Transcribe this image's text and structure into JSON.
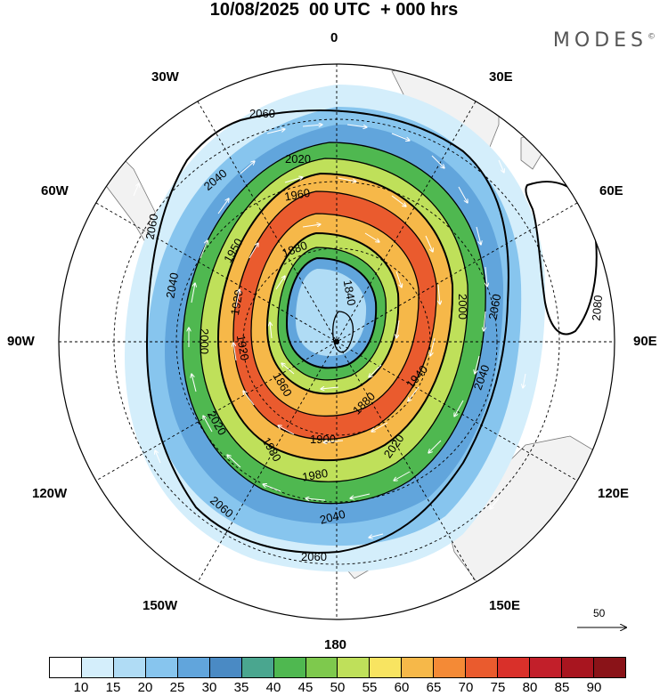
{
  "title": "10/08/2025  00 UTC  + 000 hrs",
  "brand": "MODES",
  "brand_mark": "©",
  "longitude_labels": {
    "top": "0",
    "bottom": "180",
    "upper_left": "30W",
    "upper_right": "30E",
    "left_upper": "60W",
    "right_upper": "60E",
    "left": "90W",
    "right": "90E",
    "left_lower": "120W",
    "right_lower": "120E",
    "lower_left": "150W",
    "lower_right": "150E"
  },
  "contour_labels": [
    "2060",
    "2040",
    "2020",
    "2000",
    "1980",
    "1960",
    "1950",
    "1940",
    "1920",
    "1900",
    "1880",
    "1860",
    "1840",
    "2080"
  ],
  "reference_vector": {
    "value": "50"
  },
  "colorbar": {
    "colors": [
      "#ffffff",
      "#d4eefb",
      "#b0dcf5",
      "#87c5ee",
      "#61a5dc",
      "#4a8ac4",
      "#4aa68f",
      "#4fb850",
      "#7ec94d",
      "#bfe05a",
      "#f8e461",
      "#f6b849",
      "#f48a36",
      "#ea5b2e",
      "#d9302a",
      "#c21f2a",
      "#a8151f",
      "#8a1318"
    ],
    "ticks": [
      "10",
      "15",
      "20",
      "25",
      "30",
      "35",
      "40",
      "45",
      "50",
      "55",
      "60",
      "65",
      "70",
      "75",
      "80",
      "85",
      "90"
    ]
  }
}
